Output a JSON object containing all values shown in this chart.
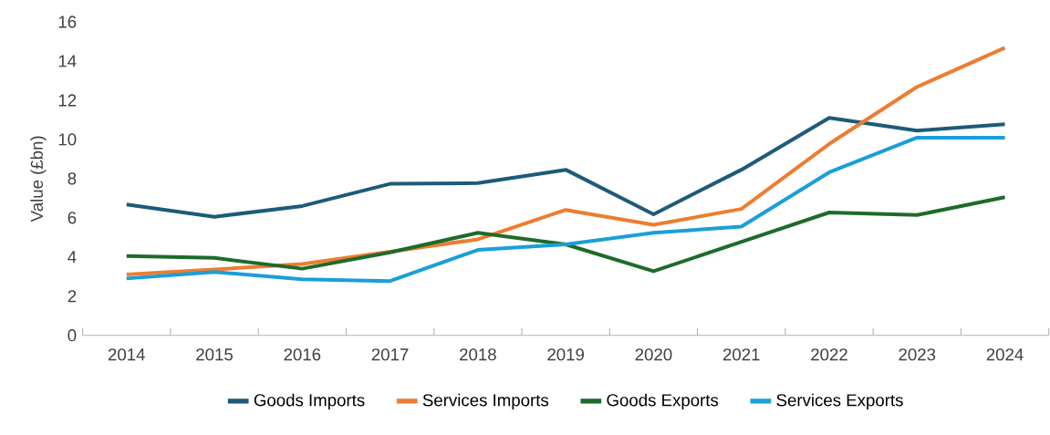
{
  "chart_data": {
    "type": "line",
    "ylabel": "Value (£bn)",
    "categories": [
      "2014",
      "2015",
      "2016",
      "2017",
      "2018",
      "2019",
      "2020",
      "2021",
      "2022",
      "2023",
      "2024"
    ],
    "series": [
      {
        "name": "Goods Imports",
        "color": "#1d5b79",
        "values": [
          6.68,
          6.05,
          6.6,
          7.73,
          7.77,
          8.45,
          6.18,
          8.45,
          11.1,
          10.45,
          10.77
        ]
      },
      {
        "name": "Services Imports",
        "color": "#ed7d31",
        "values": [
          3.1,
          3.36,
          3.64,
          4.27,
          4.9,
          6.4,
          5.64,
          6.45,
          9.77,
          12.68,
          14.68
        ]
      },
      {
        "name": "Goods Exports",
        "color": "#1e6b2a",
        "values": [
          4.05,
          3.95,
          3.4,
          4.23,
          5.23,
          4.64,
          3.27,
          4.77,
          6.27,
          6.14,
          7.05
        ]
      },
      {
        "name": "Services Exports",
        "color": "#1a9fd8",
        "values": [
          2.9,
          3.23,
          2.86,
          2.77,
          4.36,
          4.64,
          5.23,
          5.55,
          8.32,
          10.09,
          10.09
        ]
      }
    ],
    "ylim": [
      0,
      16
    ],
    "yticks": [
      0,
      2,
      4,
      6,
      8,
      10,
      12,
      14,
      16
    ],
    "grid": false,
    "legend": "bottom",
    "marker": "none",
    "line_style": "solid"
  }
}
